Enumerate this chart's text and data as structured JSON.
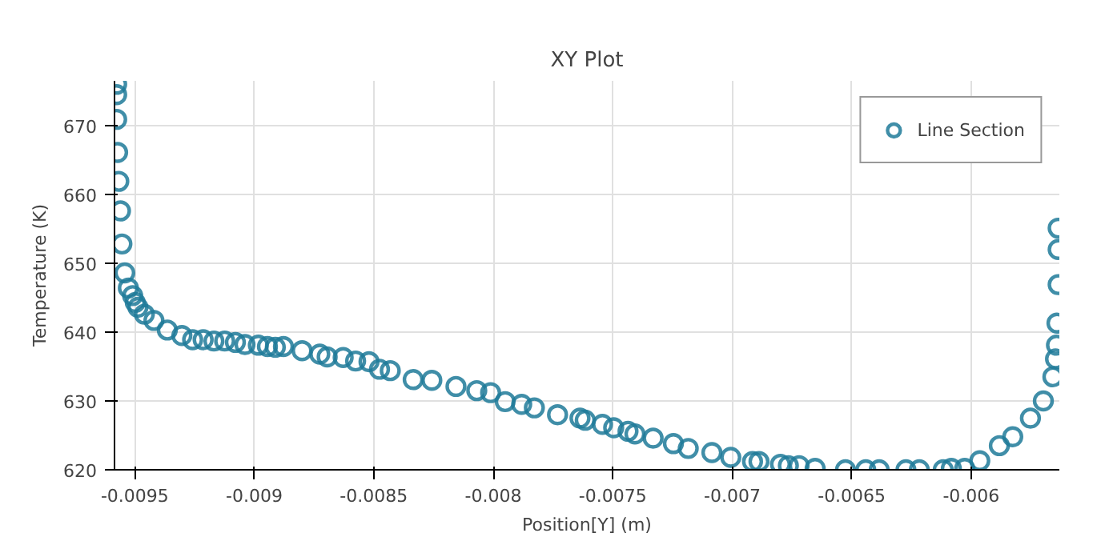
{
  "chart_data": {
    "type": "scatter",
    "title": "XY Plot",
    "xlabel": "Position[Y] (m)",
    "ylabel": "Temperature (K)",
    "xlim": [
      -0.009585,
      -0.005631
    ],
    "ylim": [
      620,
      676.5
    ],
    "xticks": [
      -0.0095,
      -0.009,
      -0.0085,
      -0.008,
      -0.0075,
      -0.007,
      -0.0065,
      -0.006
    ],
    "yticks": [
      620,
      630,
      640,
      650,
      660,
      670
    ],
    "grid": true,
    "legend": "top right",
    "marker": "circle",
    "series": [
      {
        "name": "Line Section",
        "color": "#1f7a99",
        "x": [
          -0.009576,
          -0.009576,
          -0.009576,
          -0.009572,
          -0.009567,
          -0.00956,
          -0.009554,
          -0.009542,
          -0.009527,
          -0.009509,
          -0.009498,
          -0.009487,
          -0.00946,
          -0.00942,
          -0.009364,
          -0.009303,
          -0.009258,
          -0.009214,
          -0.009169,
          -0.009124,
          -0.009079,
          -0.009039,
          -0.008983,
          -0.008945,
          -0.008912,
          -0.008878,
          -0.0088,
          -0.008726,
          -0.008695,
          -0.008628,
          -0.008576,
          -0.00852,
          -0.008476,
          -0.008431,
          -0.008335,
          -0.008257,
          -0.008156,
          -0.008069,
          -0.008011,
          -0.00795,
          -0.007881,
          -0.007828,
          -0.007731,
          -0.007637,
          -0.007615,
          -0.007543,
          -0.007496,
          -0.007436,
          -0.007407,
          -0.007331,
          -0.007246,
          -0.007184,
          -0.007085,
          -0.007006,
          -0.006915,
          -0.006888,
          -0.006798,
          -0.006765,
          -0.00672,
          -0.006653,
          -0.006526,
          -0.006441,
          -0.006385,
          -0.006273,
          -0.006217,
          -0.006117,
          -0.006083,
          -0.006027,
          -0.005964,
          -0.005882,
          -0.005826,
          -0.005752,
          -0.005698,
          -0.005658,
          -0.005647,
          -0.005643,
          -0.005641,
          -0.005636,
          -0.005636,
          -0.005636
        ],
        "values": [
          676,
          674.5,
          670.9,
          666.1,
          661.9,
          657.6,
          652.8,
          648.6,
          646.4,
          645.3,
          644.3,
          643.6,
          642.6,
          641.7,
          640.3,
          639.5,
          638.9,
          638.9,
          638.7,
          638.7,
          638.5,
          638.2,
          638.1,
          637.9,
          637.8,
          637.9,
          637.3,
          636.8,
          636.4,
          636.3,
          635.8,
          635.7,
          634.6,
          634.4,
          633.1,
          633.0,
          632.1,
          631.5,
          631.2,
          629.9,
          629.5,
          629.0,
          628.0,
          627.5,
          627.2,
          626.6,
          626.1,
          625.6,
          625.2,
          624.6,
          623.8,
          623.1,
          622.5,
          621.8,
          621.2,
          621.2,
          620.8,
          620.6,
          620.6,
          620.2,
          620,
          620,
          620,
          620,
          620,
          620,
          620.2,
          620.2,
          621.3,
          623.5,
          624.8,
          627.5,
          630.0,
          633.5,
          636.1,
          638.1,
          641.3,
          646.9,
          652.0,
          655.1
        ]
      }
    ]
  }
}
